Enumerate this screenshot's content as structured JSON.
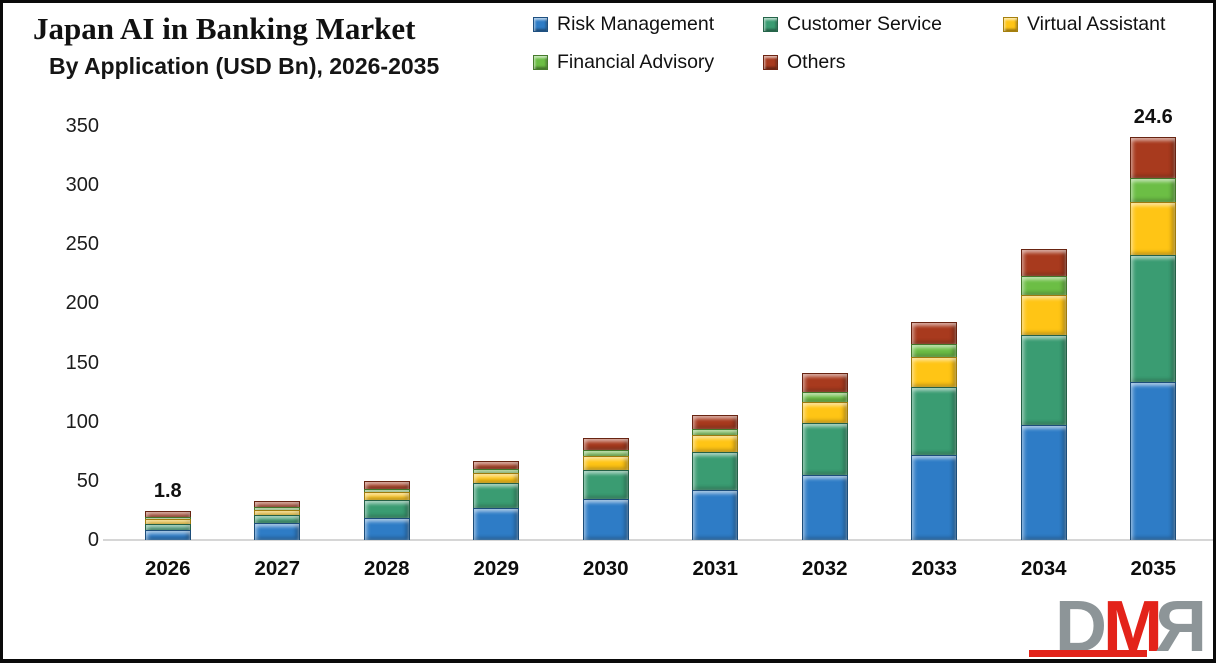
{
  "header": {
    "title": "Japan AI in Banking Market",
    "subtitle": "By Application (USD Bn), 2026-2035"
  },
  "legend": {
    "items": [
      {
        "label": "Risk Management",
        "color": "#2E7CC6"
      },
      {
        "label": "Customer Service",
        "color": "#3A9C72"
      },
      {
        "label": "Virtual Assistant",
        "color": "#FFC515"
      },
      {
        "label": "Financial Advisory",
        "color": "#6CBE45"
      },
      {
        "label": "Others",
        "color": "#A83A1E"
      }
    ]
  },
  "chart_data": {
    "type": "bar",
    "stacked": true,
    "title": "Japan AI in Banking Market",
    "subtitle": "By Application (USD Bn), 2026-2035",
    "xlabel": "",
    "ylabel": "",
    "ylim": [
      0,
      350
    ],
    "ytick_step": 50,
    "grid": false,
    "legend_position": "top",
    "categories": [
      "2026",
      "2027",
      "2028",
      "2029",
      "2030",
      "2031",
      "2032",
      "2033",
      "2034",
      "2035"
    ],
    "series": [
      {
        "name": "Risk Management",
        "color": "#2E7CC6",
        "values": [
          8.5,
          14,
          19,
          27,
          35,
          42,
          55,
          72,
          97,
          134
        ]
      },
      {
        "name": "Customer Service",
        "color": "#3A9C72",
        "values": [
          5,
          7,
          15,
          21,
          24,
          32,
          44,
          57,
          76,
          107
        ]
      },
      {
        "name": "Virtual Assistant",
        "color": "#FFC515",
        "values": [
          4,
          4.5,
          7,
          9,
          12,
          15,
          18,
          26,
          34,
          45
        ]
      },
      {
        "name": "Financial Advisory",
        "color": "#6CBE45",
        "values": [
          2.3,
          2.4,
          2.5,
          3,
          5.5,
          5,
          8,
          11,
          16,
          20
        ]
      },
      {
        "name": "Others",
        "color": "#A83A1E",
        "values": [
          4.5,
          5,
          6,
          6.5,
          10,
          12,
          16,
          18,
          23,
          35
        ]
      }
    ],
    "bar_labels": [
      "1.8",
      "",
      "",
      "",
      "",
      "",
      "",
      "",
      "",
      "24.6"
    ]
  },
  "watermark": {
    "letters": [
      {
        "char": "D",
        "color": "#8D9598",
        "mirrored": false
      },
      {
        "char": "M",
        "color": "#E3231A",
        "mirrored": false
      },
      {
        "char": "R",
        "color": "#8D9598",
        "mirrored": true
      }
    ],
    "underline_color": "#E3231A"
  }
}
